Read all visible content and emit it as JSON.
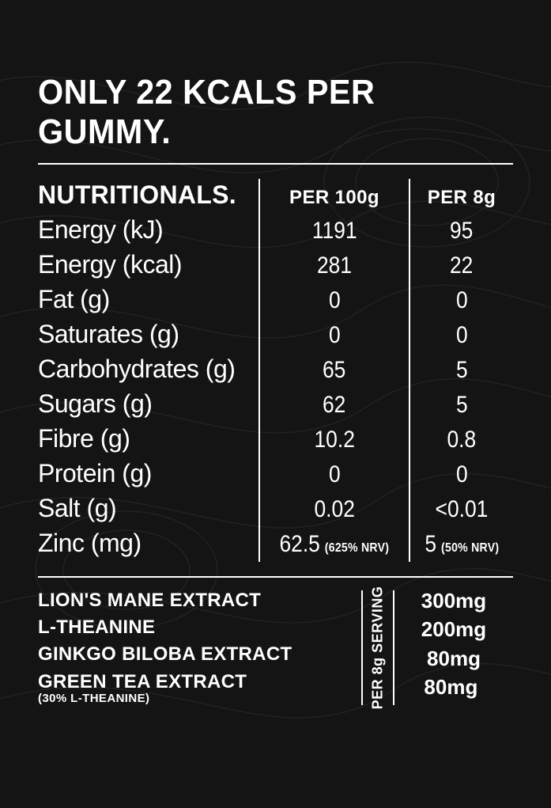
{
  "headline": "ONLY 22 KCALS PER GUMMY.",
  "nutritionals": {
    "title": "NUTRITIONALS.",
    "col1_header": "PER 100g",
    "col2_header": "PER 8g",
    "rows": [
      {
        "label": "Energy (kJ)",
        "v1": "1191",
        "v2": "95"
      },
      {
        "label": "Energy (kcal)",
        "v1": "281",
        "v2": "22"
      },
      {
        "label": "Fat (g)",
        "v1": "0",
        "v2": "0"
      },
      {
        "label": "Saturates (g)",
        "v1": "0",
        "v2": "0"
      },
      {
        "label": "Carbohydrates (g)",
        "v1": "65",
        "v2": "5"
      },
      {
        "label": "Sugars (g)",
        "v1": "62",
        "v2": "5"
      },
      {
        "label": "Fibre (g)",
        "v1": "10.2",
        "v2": "0.8"
      },
      {
        "label": "Protein (g)",
        "v1": "0",
        "v2": "0"
      },
      {
        "label": "Salt (g)",
        "v1": "0.02",
        "v2": "<0.01"
      },
      {
        "label": "Zinc (mg)",
        "v1": "62.5",
        "v1_nrv": "(625% NRV)",
        "v2": "5",
        "v2_nrv": "(50% NRV)"
      }
    ]
  },
  "extracts": {
    "serving_label": "PER 8g SERVING",
    "rows": [
      {
        "label": "LION'S MANE EXTRACT",
        "value": "300mg"
      },
      {
        "label": "L-THEANINE",
        "value": "200mg"
      },
      {
        "label": "GINKGO BILOBA EXTRACT",
        "value": "80mg"
      },
      {
        "label": "GREEN TEA EXTRACT",
        "sublabel": "(30% L-THEANINE)",
        "value": "80mg"
      }
    ]
  },
  "colors": {
    "background": "#141414",
    "text": "#ffffff",
    "rule": "#ffffff",
    "topo_stroke": "#3a3a3a"
  }
}
